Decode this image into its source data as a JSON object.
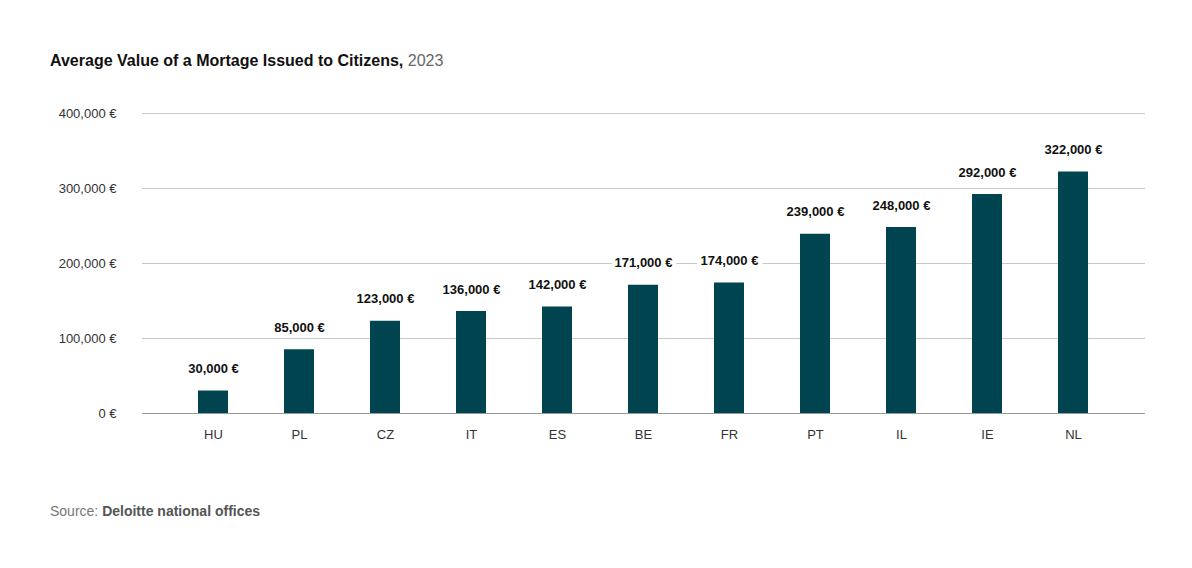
{
  "chart_data": {
    "type": "bar",
    "title": "Average Value of a Mortage Issued to Citizens,",
    "subtitle": "2023",
    "source": "Source: Deloitte national offices",
    "categories": [
      "HU",
      "PL",
      "CZ",
      "IT",
      "ES",
      "BE",
      "FR",
      "PT",
      "IL",
      "IE",
      "NL"
    ],
    "values": [
      30000,
      85000,
      123000,
      136000,
      142000,
      171000,
      174000,
      239000,
      248000,
      292000,
      322000
    ],
    "value_labels": [
      "30,000 €",
      "85,000 €",
      "123,000 €",
      "136,000 €",
      "142,000 €",
      "171,000 €",
      "174,000 €",
      "239,000 €",
      "248,000 €",
      "292,000 €",
      "322,000 €"
    ],
    "color": "#00444f",
    "ylim": [
      0,
      400000
    ],
    "yticks": [
      {
        "value": 0,
        "label": "0 €"
      },
      {
        "value": 100000,
        "label": "100,000 €"
      },
      {
        "value": 200000,
        "label": "200,000 €"
      },
      {
        "value": 300000,
        "label": "300,000 €"
      },
      {
        "value": 400000,
        "label": "400,000 €"
      }
    ],
    "grid": true,
    "data_labels": true
  }
}
